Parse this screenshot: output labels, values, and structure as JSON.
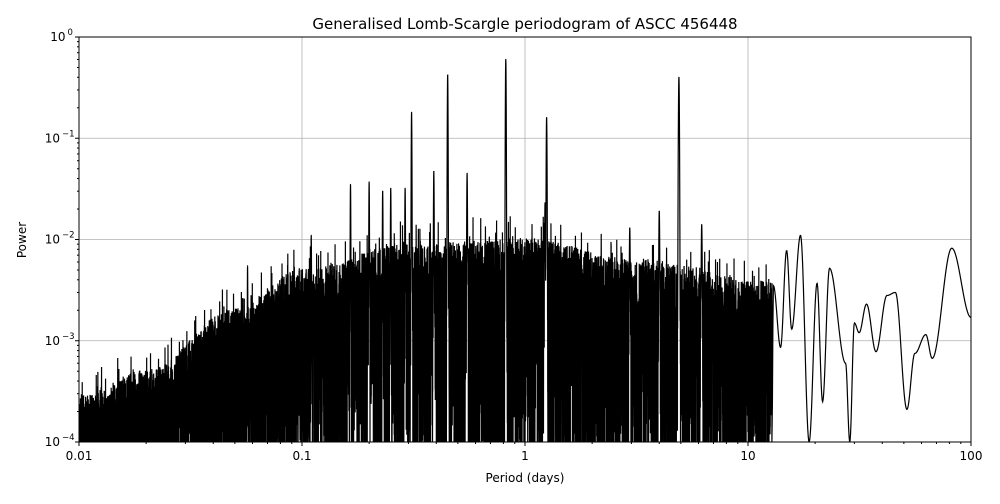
{
  "chart_data": {
    "type": "line",
    "title": "Generalised Lomb-Scargle periodogram of ASCC 456448",
    "xlabel": "Period (days)",
    "ylabel": "Power",
    "xscale": "log",
    "yscale": "log",
    "xlim": [
      0.01,
      100
    ],
    "ylim": [
      0.0001,
      1
    ],
    "grid": true,
    "x_ticks": [
      {
        "value": 0.01,
        "label": "0.01"
      },
      {
        "value": 0.1,
        "label": "0.1"
      },
      {
        "value": 1,
        "label": "1"
      },
      {
        "value": 10,
        "label": "10"
      },
      {
        "value": 100,
        "label": "100"
      }
    ],
    "y_ticks": [
      {
        "value": 0.0001,
        "base": "10",
        "exp": "−4"
      },
      {
        "value": 0.001,
        "base": "10",
        "exp": "−3"
      },
      {
        "value": 0.01,
        "base": "10",
        "exp": "−2"
      },
      {
        "value": 0.1,
        "base": "10",
        "exp": "−1"
      },
      {
        "value": 1,
        "base": "10",
        "exp": "0"
      }
    ],
    "peaks": [
      {
        "period": 0.82,
        "power": 0.6
      },
      {
        "period": 0.45,
        "power": 0.42
      },
      {
        "period": 4.9,
        "power": 0.4
      },
      {
        "period": 0.31,
        "power": 0.18
      },
      {
        "period": 1.25,
        "power": 0.16
      },
      {
        "period": 0.55,
        "power": 0.045
      },
      {
        "period": 0.39,
        "power": 0.047
      },
      {
        "period": 0.2,
        "power": 0.037
      },
      {
        "period": 0.165,
        "power": 0.035
      },
      {
        "period": 0.25,
        "power": 0.032
      },
      {
        "period": 0.29,
        "power": 0.032
      },
      {
        "period": 0.23,
        "power": 0.03
      },
      {
        "period": 1.23,
        "power": 0.023
      },
      {
        "period": 4.0,
        "power": 0.019
      },
      {
        "period": 6.2,
        "power": 0.014
      },
      {
        "period": 2.95,
        "power": 0.013
      },
      {
        "period": 0.11,
        "power": 0.011
      },
      {
        "period": 0.057,
        "power": 0.0055
      }
    ],
    "noise_envelope": [
      {
        "period": 0.01,
        "power": 0.00022
      },
      {
        "period": 0.02,
        "power": 0.0004
      },
      {
        "period": 0.05,
        "power": 0.0016
      },
      {
        "period": 0.1,
        "power": 0.004
      },
      {
        "period": 0.3,
        "power": 0.007
      },
      {
        "period": 1,
        "power": 0.008
      },
      {
        "period": 3,
        "power": 0.005
      },
      {
        "period": 12.8,
        "power": 0.003
      }
    ],
    "long_period_curve": [
      {
        "period": 12.8,
        "power": 0.0001
      },
      {
        "period": 13.0,
        "power": 0.0035
      },
      {
        "period": 14.0,
        "power": 0.00086
      },
      {
        "period": 14.9,
        "power": 0.0078
      },
      {
        "period": 15.7,
        "power": 0.0013
      },
      {
        "period": 17.2,
        "power": 0.011
      },
      {
        "period": 18.8,
        "power": 0.0001
      },
      {
        "period": 20.4,
        "power": 0.0037
      },
      {
        "period": 21.6,
        "power": 0.00025
      },
      {
        "period": 23.2,
        "power": 0.0052
      },
      {
        "period": 27.4,
        "power": 0.0006
      },
      {
        "period": 28.6,
        "power": 0.0001
      },
      {
        "period": 30.0,
        "power": 0.0015
      },
      {
        "period": 31.5,
        "power": 0.0012
      },
      {
        "period": 34.0,
        "power": 0.0023
      },
      {
        "period": 37.5,
        "power": 0.00078
      },
      {
        "period": 42.0,
        "power": 0.0028
      },
      {
        "period": 45.8,
        "power": 0.003
      },
      {
        "period": 51.6,
        "power": 0.00021
      },
      {
        "period": 56.0,
        "power": 0.00075
      },
      {
        "period": 62.7,
        "power": 0.00115
      },
      {
        "period": 67.0,
        "power": 0.00067
      },
      {
        "period": 82.0,
        "power": 0.0082
      },
      {
        "period": 100,
        "power": 0.0017
      }
    ]
  }
}
